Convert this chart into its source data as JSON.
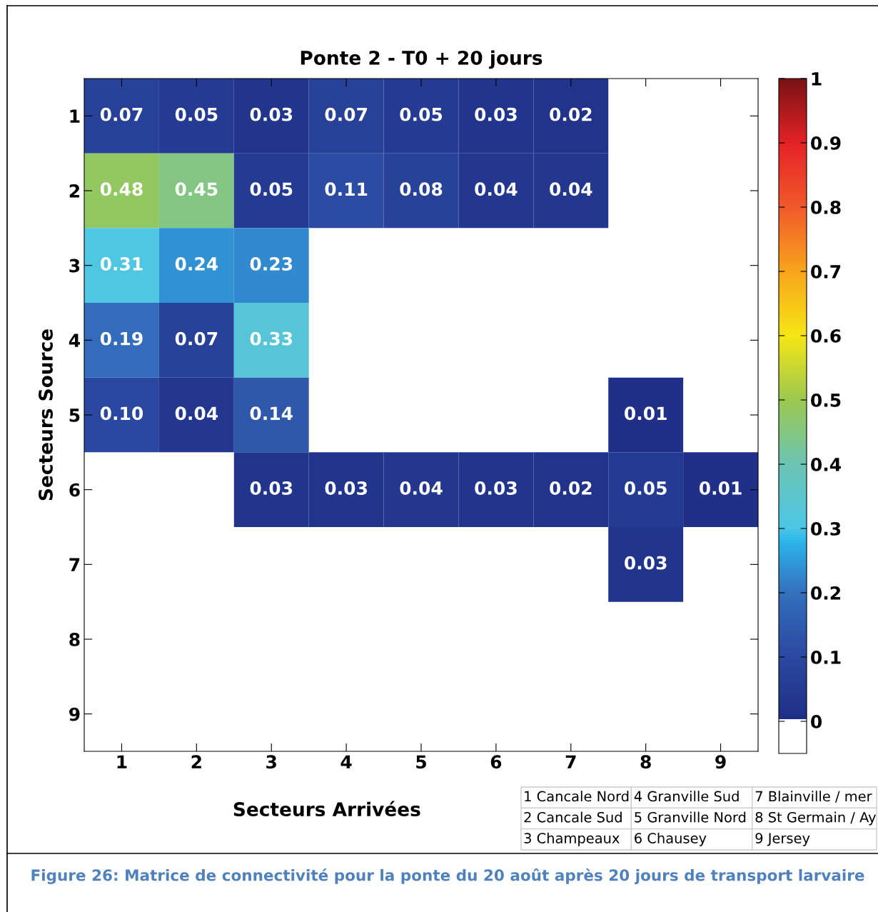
{
  "chart_data": {
    "type": "heatmap",
    "title": "Ponte 2 - T0 + 20 jours",
    "xlabel": "Secteurs Arrivées",
    "ylabel": "Secteurs Source",
    "categories": [
      "1",
      "2",
      "3",
      "4",
      "5",
      "6",
      "7",
      "8",
      "9"
    ],
    "y_categories": [
      "1",
      "2",
      "3",
      "4",
      "5",
      "6",
      "7",
      "8",
      "9"
    ],
    "cells": [
      [
        0.07,
        0.05,
        0.03,
        0.07,
        0.05,
        0.03,
        0.02,
        null,
        null
      ],
      [
        0.48,
        0.45,
        0.05,
        0.11,
        0.08,
        0.04,
        0.04,
        null,
        null
      ],
      [
        0.31,
        0.24,
        0.23,
        null,
        null,
        null,
        null,
        null,
        null
      ],
      [
        0.19,
        0.07,
        0.33,
        null,
        null,
        null,
        null,
        null,
        null
      ],
      [
        0.1,
        0.04,
        0.14,
        null,
        null,
        null,
        null,
        0.01,
        null
      ],
      [
        null,
        null,
        0.03,
        0.03,
        0.04,
        0.03,
        0.02,
        0.05,
        0.01
      ],
      [
        null,
        null,
        null,
        null,
        null,
        null,
        null,
        0.03,
        null
      ],
      [
        null,
        null,
        null,
        null,
        null,
        null,
        null,
        null,
        null
      ],
      [
        null,
        null,
        null,
        null,
        null,
        null,
        null,
        null,
        null
      ]
    ],
    "cell_labels": [
      [
        "0.07",
        "0.05",
        "0.03",
        "0.07",
        "0.05",
        "0.03",
        "0.02",
        null,
        null
      ],
      [
        "0.48",
        "0.45",
        "0.05",
        "0.11",
        "0.08",
        "0.04",
        "0.04",
        null,
        null
      ],
      [
        "0.31",
        "0.24",
        "0.23",
        null,
        null,
        null,
        null,
        null,
        null
      ],
      [
        "0.19",
        "0.07",
        "0.33",
        null,
        null,
        null,
        null,
        null,
        null
      ],
      [
        "0.10",
        "0.04",
        "0.14",
        null,
        null,
        null,
        null,
        "0.01",
        null
      ],
      [
        null,
        null,
        "0.03",
        "0.03",
        "0.04",
        "0.03",
        "0.02",
        "0.05",
        "0.01"
      ],
      [
        null,
        null,
        null,
        null,
        null,
        null,
        null,
        "0.03",
        null
      ],
      [
        null,
        null,
        null,
        null,
        null,
        null,
        null,
        null,
        null
      ],
      [
        null,
        null,
        null,
        null,
        null,
        null,
        null,
        null,
        null
      ]
    ],
    "clim": [
      -0.05,
      1
    ],
    "cticks": [
      0,
      0.1,
      0.2,
      0.3,
      0.4,
      0.5,
      0.6,
      0.7,
      0.8,
      0.9,
      1
    ],
    "annotations": [
      "1 Cancale Nord",
      "2 Cancale Sud",
      "3 Champeaux",
      "4 Granville Sud",
      "5 Granville Nord",
      "6 Chausey",
      "7 Blainville / mer",
      "8 St Germain / Ay",
      "9 Jersey",
      "Figure 26: Matrice de connectivité pour la ponte du 20 août après 20 jours de transport larvaire"
    ]
  }
}
